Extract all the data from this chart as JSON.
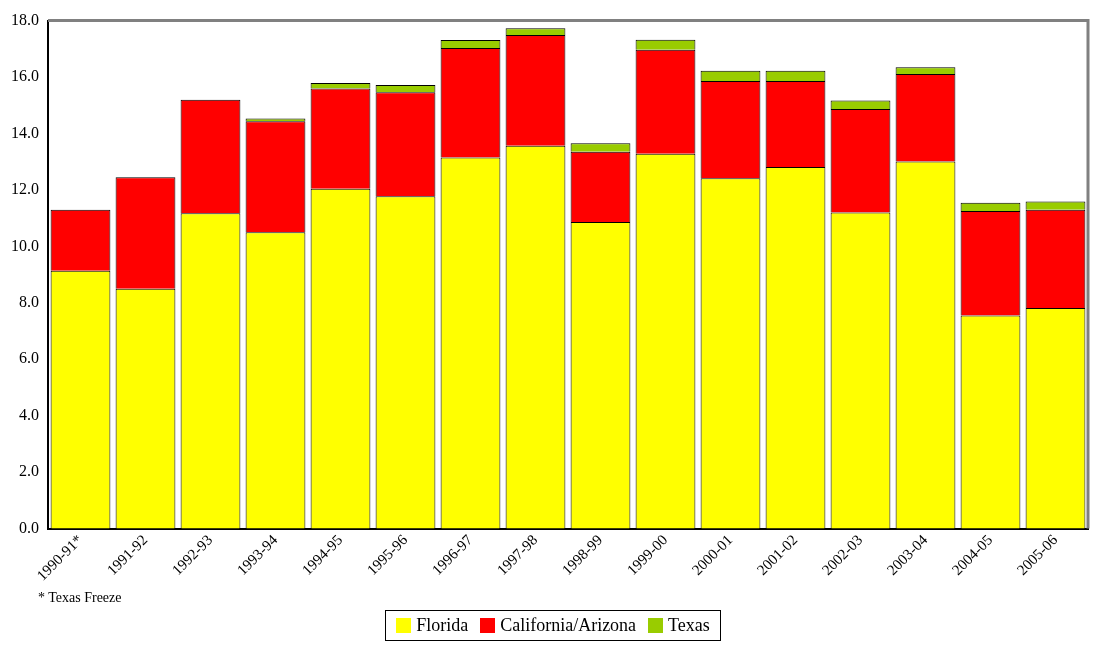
{
  "chart_data": {
    "type": "bar",
    "stacked": true,
    "categories": [
      "1990-91*",
      "1991-92",
      "1992-93",
      "1993-94",
      "1994-95",
      "1995-96",
      "1996-97",
      "1997-98",
      "1998-99",
      "1999-00",
      "2000-01",
      "2001-02",
      "2002-03",
      "2003-04",
      "2004-05",
      "2005-06"
    ],
    "series": [
      {
        "name": "Florida",
        "color": "#ffff00",
        "values": [
          9.14,
          8.5,
          11.17,
          10.5,
          12.04,
          11.78,
          13.15,
          13.57,
          10.86,
          13.28,
          12.41,
          12.81,
          11.2,
          13.01,
          7.55,
          7.82
        ]
      },
      {
        "name": "California/Arizona",
        "color": "#ff0000",
        "values": [
          2.16,
          3.95,
          4.03,
          3.93,
          3.55,
          3.68,
          3.88,
          3.92,
          2.49,
          3.69,
          3.45,
          3.05,
          3.67,
          3.1,
          3.7,
          3.48
        ]
      },
      {
        "name": "Texas",
        "color": "#99cc00",
        "values": [
          0,
          0,
          null,
          0.1,
          0.2,
          0.26,
          0.28,
          0.24,
          0.3,
          0.35,
          0.36,
          0.36,
          0.3,
          0.24,
          0.3,
          0.29
        ]
      }
    ],
    "ylim": [
      0,
      18
    ],
    "yticks": [
      {
        "value": 0,
        "label": "0.0"
      },
      {
        "value": 2,
        "label": "2.0"
      },
      {
        "value": 4,
        "label": "4.0"
      },
      {
        "value": 6,
        "label": "6.0"
      },
      {
        "value": 8,
        "label": "8.0"
      },
      {
        "value": 10,
        "label": "10.0"
      },
      {
        "value": 12,
        "label": "12.0"
      },
      {
        "value": 14,
        "label": "14.0"
      },
      {
        "value": 16,
        "label": "16.0"
      },
      {
        "value": 18,
        "label": "18.0"
      }
    ],
    "grid": false,
    "legend": "bottom",
    "annotations": [
      "* Texas Freeze"
    ]
  }
}
